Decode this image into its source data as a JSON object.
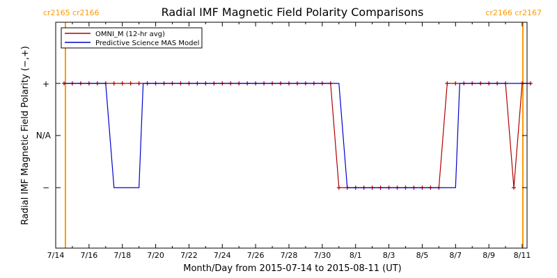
{
  "chart_data": {
    "type": "line",
    "title": "Radial IMF Magnetic Field Polarity Comparisons",
    "xlabel": "Month/Day from 2015-07-14 to 2015-08-11 (UT)",
    "ylabel": "Radial IMF Magnetic Field Polarity (−,+)",
    "x_range": [
      "2015-07-14",
      "2015-08-11"
    ],
    "x_tick_labels": [
      "7/14",
      "7/16",
      "7/18",
      "7/20",
      "7/22",
      "7/24",
      "7/26",
      "7/28",
      "7/30",
      "8/1",
      "8/3",
      "8/5",
      "8/7",
      "8/9",
      "8/11"
    ],
    "y_categories": [
      "−",
      "N/A",
      "+"
    ],
    "y_values": {
      "minus": -1,
      "na": 0,
      "plus": 1
    },
    "ylim": [
      -2,
      2
    ],
    "grid": false,
    "legend_position": "top-left",
    "carrington_markers": [
      {
        "label": "cr2165 cr2166",
        "x": "2015-07-14T14:00",
        "side": "left"
      },
      {
        "label": "cr2166 cr2167",
        "x": "2015-08-11T01:00",
        "side": "right"
      }
    ],
    "series": [
      {
        "name": "OMNI_M (12-hr avg)",
        "color": "#b00000",
        "marker": "+",
        "points": [
          [
            "2015-07-14T12:00",
            1
          ],
          [
            "2015-07-15T00:00",
            1
          ],
          [
            "2015-07-15T12:00",
            1
          ],
          [
            "2015-07-16T00:00",
            1
          ],
          [
            "2015-07-16T12:00",
            1
          ],
          [
            "2015-07-17T00:00",
            1
          ],
          [
            "2015-07-17T12:00",
            1
          ],
          [
            "2015-07-18T00:00",
            1
          ],
          [
            "2015-07-18T12:00",
            1
          ],
          [
            "2015-07-19T00:00",
            1
          ],
          [
            "2015-07-19T12:00",
            1
          ],
          [
            "2015-07-20T00:00",
            1
          ],
          [
            "2015-07-20T12:00",
            1
          ],
          [
            "2015-07-21T00:00",
            1
          ],
          [
            "2015-07-21T12:00",
            1
          ],
          [
            "2015-07-22T00:00",
            1
          ],
          [
            "2015-07-22T12:00",
            1
          ],
          [
            "2015-07-23T00:00",
            1
          ],
          [
            "2015-07-23T12:00",
            1
          ],
          [
            "2015-07-24T00:00",
            1
          ],
          [
            "2015-07-24T12:00",
            1
          ],
          [
            "2015-07-25T00:00",
            1
          ],
          [
            "2015-07-25T12:00",
            1
          ],
          [
            "2015-07-26T00:00",
            1
          ],
          [
            "2015-07-26T12:00",
            1
          ],
          [
            "2015-07-27T00:00",
            1
          ],
          [
            "2015-07-27T12:00",
            1
          ],
          [
            "2015-07-28T00:00",
            1
          ],
          [
            "2015-07-28T12:00",
            1
          ],
          [
            "2015-07-29T00:00",
            1
          ],
          [
            "2015-07-29T12:00",
            1
          ],
          [
            "2015-07-30T00:00",
            1
          ],
          [
            "2015-07-30T12:00",
            1
          ],
          [
            "2015-07-31T00:00",
            -1
          ],
          [
            "2015-07-31T12:00",
            -1
          ],
          [
            "2015-08-01T00:00",
            -1
          ],
          [
            "2015-08-01T12:00",
            -1
          ],
          [
            "2015-08-02T00:00",
            -1
          ],
          [
            "2015-08-02T12:00",
            -1
          ],
          [
            "2015-08-03T00:00",
            -1
          ],
          [
            "2015-08-03T12:00",
            -1
          ],
          [
            "2015-08-04T00:00",
            -1
          ],
          [
            "2015-08-04T12:00",
            -1
          ],
          [
            "2015-08-05T00:00",
            -1
          ],
          [
            "2015-08-05T12:00",
            -1
          ],
          [
            "2015-08-06T00:00",
            -1
          ],
          [
            "2015-08-06T12:00",
            1
          ],
          [
            "2015-08-07T00:00",
            1
          ],
          [
            "2015-08-07T12:00",
            1
          ],
          [
            "2015-08-08T00:00",
            1
          ],
          [
            "2015-08-08T12:00",
            1
          ],
          [
            "2015-08-09T00:00",
            1
          ],
          [
            "2015-08-09T12:00",
            1
          ],
          [
            "2015-08-10T00:00",
            1
          ],
          [
            "2015-08-10T12:00",
            -1
          ],
          [
            "2015-08-11T00:00",
            1
          ],
          [
            "2015-08-11T12:00",
            1
          ]
        ]
      },
      {
        "name": "Predictive Science MAS Model",
        "color": "#0000cc",
        "marker": "",
        "points": [
          [
            "2015-07-14T12:00",
            1
          ],
          [
            "2015-07-17T00:00",
            1
          ],
          [
            "2015-07-17T12:00",
            -1
          ],
          [
            "2015-07-19T00:00",
            -1
          ],
          [
            "2015-07-19T06:00",
            1
          ],
          [
            "2015-07-31T00:00",
            1
          ],
          [
            "2015-07-31T12:00",
            -1
          ],
          [
            "2015-08-07T00:00",
            -1
          ],
          [
            "2015-08-07T06:00",
            1
          ],
          [
            "2015-08-11T12:00",
            1
          ]
        ]
      }
    ]
  }
}
